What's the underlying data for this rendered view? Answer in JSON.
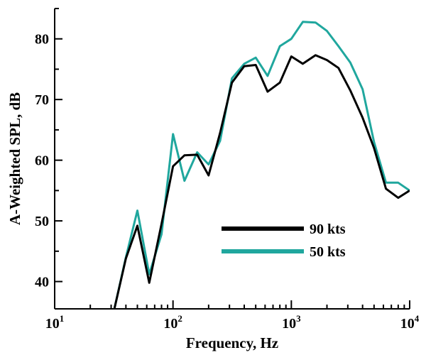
{
  "chart_data": {
    "type": "line",
    "xlabel": "Frequency, Hz",
    "ylabel": "A-Weighted SPL, dB",
    "xscale": "log",
    "xlim": [
      10,
      10000
    ],
    "ylim": [
      35.5,
      85
    ],
    "grid": false,
    "legend_position": "lower-center",
    "x_ticks": [
      {
        "value": 10,
        "base": "10",
        "exp": "1"
      },
      {
        "value": 100,
        "base": "10",
        "exp": "2"
      },
      {
        "value": 1000,
        "base": "10",
        "exp": "3"
      },
      {
        "value": 10000,
        "base": "10",
        "exp": "4"
      }
    ],
    "y_ticks": [
      40,
      50,
      60,
      70,
      80
    ],
    "series": [
      {
        "name": "90 kts",
        "color": "#000000",
        "x": [
          31.5,
          40,
          50,
          63,
          80,
          100,
          125,
          160,
          200,
          250,
          315,
          400,
          500,
          630,
          800,
          1000,
          1250,
          1600,
          2000,
          2500,
          3150,
          4000,
          5000,
          6300,
          8000,
          10000
        ],
        "y": [
          35,
          43.8,
          49.2,
          39.8,
          49.5,
          59,
          60.8,
          60.9,
          57.5,
          64.5,
          72.8,
          75.5,
          75.7,
          71.3,
          72.8,
          77.1,
          75.9,
          77.3,
          76.5,
          75.2,
          71.5,
          67,
          62,
          55.3,
          53.8,
          55
        ]
      },
      {
        "name": "50 kts",
        "color": "#20a79e",
        "x": [
          31.5,
          40,
          50,
          63,
          80,
          100,
          125,
          160,
          200,
          250,
          315,
          400,
          500,
          630,
          800,
          1000,
          1250,
          1600,
          2000,
          2500,
          3150,
          4000,
          5000,
          6300,
          8000,
          10000
        ],
        "y": [
          35,
          44,
          51.7,
          41.2,
          47.8,
          64.3,
          56.6,
          61.3,
          59.3,
          63.2,
          73.5,
          75.9,
          76.9,
          73.9,
          78.8,
          80,
          82.8,
          82.7,
          81.3,
          78.8,
          76.1,
          71.7,
          63,
          56.3,
          56.3,
          55
        ]
      }
    ]
  }
}
